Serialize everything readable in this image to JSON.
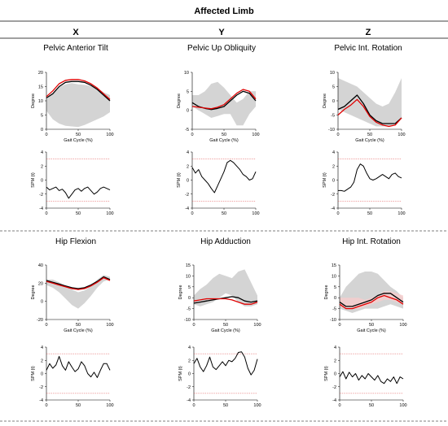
{
  "figure": {
    "header": "Affected Limb",
    "columns": [
      "X",
      "Y",
      "Z"
    ]
  },
  "colors": {
    "band": "#d4d4d4",
    "subject_black": "#000000",
    "subject_red": "#e00000",
    "threshold": "#e05050",
    "spm_curve": "#000000"
  },
  "chart_data": [
    {
      "type": "line",
      "title": "Pelvic Anterior Tilt",
      "xlabel": "Gait Cycle (%)",
      "ylabel": "Degree",
      "xlim": [
        0,
        100
      ],
      "ylim": [
        0,
        20
      ],
      "xticks": [
        0,
        50,
        100
      ],
      "yticks": [
        0,
        5,
        10,
        15,
        20
      ],
      "x": [
        0,
        10,
        20,
        30,
        40,
        50,
        60,
        70,
        80,
        90,
        100
      ],
      "band_upper": [
        10.5,
        12.5,
        14.8,
        15.8,
        16.2,
        15.8,
        15.6,
        15.2,
        14.5,
        13,
        12
      ],
      "band_lower": [
        6.5,
        3.5,
        2,
        1.2,
        1,
        0.8,
        1.5,
        2.5,
        3.5,
        4.5,
        6
      ],
      "series": [
        {
          "values": [
            11,
            12.5,
            15,
            16.5,
            16.8,
            16.8,
            16.5,
            15.5,
            14,
            12,
            10
          ]
        },
        {
          "values": [
            11.5,
            13.5,
            16,
            17.2,
            17.5,
            17.5,
            17,
            16,
            14.5,
            12.5,
            10.5
          ]
        }
      ]
    },
    {
      "type": "line",
      "title": "Pelvic Up Obliquity",
      "xlabel": "Gait Cycle (%)",
      "ylabel": "Degree",
      "xlim": [
        0,
        100
      ],
      "ylim": [
        -5,
        10
      ],
      "xticks": [
        0,
        50,
        100
      ],
      "yticks": [
        -5,
        0,
        5,
        10
      ],
      "x": [
        0,
        10,
        20,
        30,
        40,
        50,
        60,
        70,
        80,
        90,
        100
      ],
      "band_upper": [
        4,
        4,
        5,
        7,
        7.5,
        6,
        4,
        2,
        3,
        5,
        5
      ],
      "band_lower": [
        1,
        0,
        -1,
        -2,
        -1.5,
        -1,
        -1,
        -4,
        -4,
        -1,
        1
      ],
      "series": [
        {
          "values": [
            2,
            1,
            0.5,
            0.2,
            0.5,
            1,
            2.5,
            4,
            5,
            4.5,
            2.5
          ]
        },
        {
          "values": [
            1,
            0.8,
            0.6,
            0.4,
            0.8,
            1.5,
            3,
            4.5,
            5.5,
            5,
            3
          ]
        }
      ]
    },
    {
      "type": "line",
      "title": "Pelvic Int. Rotation",
      "xlabel": "Gait Cycle (%)",
      "ylabel": "Degree",
      "xlim": [
        0,
        100
      ],
      "ylim": [
        -10,
        10
      ],
      "xticks": [
        0,
        50,
        100
      ],
      "yticks": [
        -10,
        -5,
        0,
        5,
        10
      ],
      "x": [
        0,
        10,
        20,
        30,
        40,
        50,
        60,
        70,
        80,
        90,
        100
      ],
      "band_upper": [
        8,
        7,
        6,
        5,
        3,
        1,
        -1,
        -2,
        -1,
        3,
        8
      ],
      "band_lower": [
        -3,
        -4,
        -5,
        -6,
        -7,
        -8,
        -9,
        -9,
        -9,
        -8,
        -6
      ],
      "series": [
        {
          "values": [
            -3,
            -2,
            0,
            2,
            -1,
            -5,
            -7,
            -8,
            -8,
            -8,
            -6
          ]
        },
        {
          "values": [
            -5,
            -3,
            -1.5,
            0.5,
            -2,
            -5.5,
            -7.5,
            -8.5,
            -9,
            -8.5,
            -6
          ]
        }
      ]
    },
    {
      "type": "line",
      "title": "",
      "xlabel": "",
      "ylabel": "SPM {t}",
      "xlim": [
        0,
        100
      ],
      "ylim": [
        -4,
        4
      ],
      "xticks": [
        0,
        50,
        100
      ],
      "yticks": [
        -4,
        -2,
        0,
        2,
        4
      ],
      "threshold": 3,
      "x": [
        0,
        5,
        10,
        15,
        20,
        25,
        30,
        35,
        40,
        45,
        50,
        55,
        60,
        65,
        70,
        75,
        80,
        85,
        90,
        95,
        100
      ],
      "values": [
        -1,
        -1.4,
        -1.2,
        -1,
        -1.5,
        -1.3,
        -1.8,
        -2.6,
        -2,
        -1.4,
        -1.2,
        -1.6,
        -1.2,
        -1,
        -1.5,
        -2,
        -1.7,
        -1.2,
        -1,
        -1.2,
        -1.4
      ]
    },
    {
      "type": "line",
      "title": "",
      "xlabel": "",
      "ylabel": "SPM {t}",
      "xlim": [
        0,
        100
      ],
      "ylim": [
        -4,
        4
      ],
      "xticks": [
        0,
        50,
        100
      ],
      "yticks": [
        -4,
        -2,
        0,
        2,
        4
      ],
      "threshold": 3,
      "x": [
        0,
        5,
        10,
        15,
        20,
        25,
        30,
        35,
        40,
        45,
        50,
        55,
        60,
        65,
        70,
        75,
        80,
        85,
        90,
        95,
        100
      ],
      "values": [
        1.8,
        1,
        1.5,
        0.5,
        0,
        -0.5,
        -1.2,
        -1.8,
        -0.8,
        0.2,
        1.2,
        2.5,
        2.8,
        2.5,
        2,
        1.5,
        0.8,
        0.5,
        0,
        0.2,
        1.2
      ]
    },
    {
      "type": "line",
      "title": "",
      "xlabel": "",
      "ylabel": "SPM {t}",
      "xlim": [
        0,
        100
      ],
      "ylim": [
        -4,
        4
      ],
      "xticks": [
        0,
        50,
        100
      ],
      "yticks": [
        -4,
        -2,
        0,
        2,
        4
      ],
      "threshold": 3,
      "x": [
        0,
        5,
        10,
        15,
        20,
        25,
        30,
        35,
        40,
        45,
        50,
        55,
        60,
        65,
        70,
        75,
        80,
        85,
        90,
        95,
        100
      ],
      "values": [
        -1.5,
        -1.5,
        -1.6,
        -1.3,
        -1,
        -0.3,
        1.5,
        2.3,
        2,
        1,
        0.2,
        0,
        0.2,
        0.5,
        0.8,
        0.5,
        0.2,
        0.8,
        1,
        0.5,
        0.3
      ]
    },
    {
      "type": "line",
      "title": "Hip Flexion",
      "xlabel": "Gait Cycle (%)",
      "ylabel": "Degree",
      "xlim": [
        0,
        100
      ],
      "ylim": [
        -20,
        40
      ],
      "xticks": [
        0,
        50,
        100
      ],
      "yticks": [
        -20,
        0,
        20,
        40
      ],
      "x": [
        0,
        10,
        20,
        30,
        40,
        50,
        60,
        70,
        80,
        90,
        100
      ],
      "band_upper": [
        24,
        24,
        21,
        17,
        13,
        10,
        12,
        17,
        24,
        29,
        27
      ],
      "band_lower": [
        18,
        15,
        10,
        3,
        -4,
        -8,
        -2,
        6,
        15,
        22,
        24
      ],
      "series": [
        {
          "values": [
            23,
            21,
            19,
            17,
            15,
            14,
            15,
            18,
            22,
            27,
            24
          ]
        },
        {
          "values": [
            22,
            20,
            18,
            16,
            14,
            13,
            14,
            17,
            21,
            26,
            23
          ]
        }
      ]
    },
    {
      "type": "line",
      "title": "Hip Adduction",
      "xlabel": "Gait Cycle (%)",
      "ylabel": "Degree",
      "xlim": [
        0,
        100
      ],
      "ylim": [
        -10,
        15
      ],
      "xticks": [
        0,
        50,
        100
      ],
      "yticks": [
        -10,
        -5,
        0,
        5,
        10,
        15
      ],
      "x": [
        0,
        10,
        20,
        30,
        40,
        50,
        60,
        70,
        80,
        90,
        100
      ],
      "band_upper": [
        1,
        4,
        6,
        9,
        11,
        10,
        9,
        12,
        13,
        7,
        1
      ],
      "band_lower": [
        -3,
        -4,
        -3,
        -2,
        0,
        2,
        1,
        -2,
        -4,
        -4,
        -3
      ],
      "series": [
        {
          "values": [
            -2.5,
            -2,
            -1.5,
            -1,
            -0.5,
            0,
            0.5,
            0,
            -1.5,
            -2,
            -1.5
          ]
        },
        {
          "values": [
            -1.5,
            -1,
            -0.5,
            -0.5,
            -0.5,
            -0.5,
            -1,
            -2,
            -3,
            -3,
            -2
          ]
        }
      ]
    },
    {
      "type": "line",
      "title": "Hip Int. Rotation",
      "xlabel": "Gait Cycle (%)",
      "ylabel": "Degree",
      "xlim": [
        0,
        100
      ],
      "ylim": [
        -10,
        15
      ],
      "xticks": [
        0,
        50,
        100
      ],
      "yticks": [
        -10,
        -5,
        0,
        5,
        10,
        15
      ],
      "x": [
        0,
        10,
        20,
        30,
        40,
        50,
        60,
        70,
        80,
        90,
        100
      ],
      "band_upper": [
        0,
        5,
        8,
        11,
        12,
        12,
        11,
        8,
        5,
        3,
        0
      ],
      "band_lower": [
        -5,
        -6,
        -7,
        -6,
        -5,
        -5,
        -5,
        -4,
        -3,
        -4,
        -5
      ],
      "pink_upper": [
        0,
        0,
        0,
        0,
        -1,
        0,
        1,
        3,
        3,
        2,
        1
      ],
      "pink_lower": [
        -4,
        -5,
        -5,
        -5,
        -4,
        -3,
        -2,
        -1,
        -1,
        -2,
        -3
      ],
      "series": [
        {
          "values": [
            -2,
            -4,
            -4,
            -3,
            -2,
            -1,
            1,
            2,
            2,
            0,
            -2
          ]
        },
        {
          "values": [
            -3,
            -5,
            -5,
            -4,
            -3,
            -2,
            0,
            1,
            0,
            -1,
            -3
          ]
        }
      ]
    },
    {
      "type": "line",
      "title": "",
      "xlabel": "",
      "ylabel": "SPM {t}",
      "xlim": [
        0,
        100
      ],
      "ylim": [
        -4,
        4
      ],
      "xticks": [
        0,
        50,
        100
      ],
      "yticks": [
        -4,
        -2,
        0,
        2,
        4
      ],
      "threshold": 3,
      "x": [
        0,
        5,
        10,
        15,
        20,
        25,
        30,
        35,
        40,
        45,
        50,
        55,
        60,
        65,
        70,
        75,
        80,
        85,
        90,
        95,
        100
      ],
      "values": [
        0.5,
        1.5,
        0.8,
        1.3,
        2.6,
        1.2,
        0.5,
        1.8,
        1,
        0.3,
        0.7,
        1.8,
        1.2,
        0,
        -0.5,
        0.2,
        -0.6,
        0.5,
        1.5,
        1.5,
        0.5
      ]
    },
    {
      "type": "line",
      "title": "",
      "xlabel": "",
      "ylabel": "SPM {t}",
      "xlim": [
        0,
        100
      ],
      "ylim": [
        -4,
        4
      ],
      "xticks": [
        0,
        50,
        100
      ],
      "yticks": [
        -4,
        -2,
        0,
        2,
        4
      ],
      "threshold": 3,
      "x": [
        0,
        5,
        10,
        15,
        20,
        25,
        30,
        35,
        40,
        45,
        50,
        55,
        60,
        65,
        70,
        75,
        80,
        85,
        90,
        95,
        100
      ],
      "values": [
        1.5,
        2.3,
        1,
        0.3,
        1.2,
        2.5,
        1,
        0.6,
        1.2,
        1.8,
        1.2,
        2,
        1.8,
        2.3,
        3.2,
        3.3,
        2.5,
        0.8,
        -0.2,
        0.5,
        2.2
      ]
    },
    {
      "type": "line",
      "title": "",
      "xlabel": "",
      "ylabel": "SPM {t}",
      "xlim": [
        0,
        100
      ],
      "ylim": [
        -4,
        4
      ],
      "xticks": [
        0,
        50,
        100
      ],
      "yticks": [
        -4,
        -2,
        0,
        2,
        4
      ],
      "threshold": 3,
      "x": [
        0,
        5,
        10,
        15,
        20,
        25,
        30,
        35,
        40,
        45,
        50,
        55,
        60,
        65,
        70,
        75,
        80,
        85,
        90,
        95,
        100
      ],
      "values": [
        -0.5,
        0.3,
        -0.8,
        0.2,
        -0.5,
        0,
        -1,
        -0.3,
        -0.8,
        0,
        -0.5,
        -1,
        -0.3,
        -1.2,
        -1.5,
        -0.8,
        -1.2,
        -0.5,
        -1.5,
        -0.5,
        -0.8
      ]
    }
  ]
}
